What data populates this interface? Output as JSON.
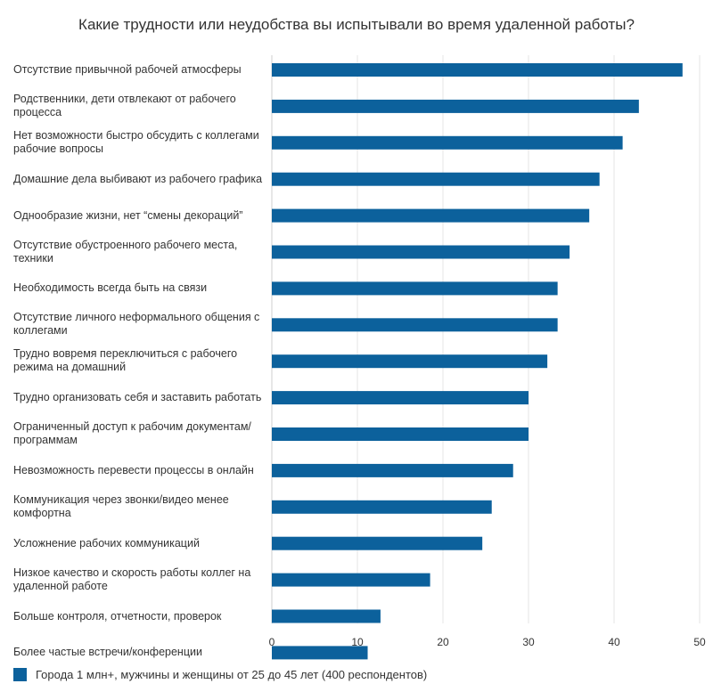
{
  "chart_data": {
    "type": "bar",
    "orientation": "horizontal",
    "title": "Какие трудности или неудобства вы испытывали во время удаленной работы?",
    "categories": [
      "Отсутствие привычной рабочей атмосферы",
      "Родственники, дети отвлекают от рабочего процесса",
      "Нет возможности быстро обсудить с коллегами рабочие вопросы",
      "Домашние дела выбивают из рабочего графика",
      "Однообразие жизни, нет “смены декораций”",
      "Отсутствие обустроенного рабочего места, техники",
      "Необходимость всегда быть на связи",
      "Отсутствие личного неформального общения с коллегами",
      "Трудно вовремя переключиться с рабочего режима на домашний",
      "Трудно организовать себя и заставить работать",
      "Ограниченный доступ к рабочим документам/программам",
      "Невозможность перевести процессы в онлайн",
      "Коммуникация через звонки/видео менее комфортна",
      "Усложнение рабочих коммуникаций",
      "Низкое качество и скорость работы коллег на удаленной работе",
      "Больше контроля, отчетности, проверок",
      "Более частые встречи/конференции"
    ],
    "series": [
      {
        "name": "Города 1 млн+, мужчины и женщины от 25 до 45 лет (400 респондентов)",
        "values": [
          48,
          42.9,
          41,
          38.3,
          37.1,
          34.8,
          33.4,
          33.4,
          32.2,
          30,
          30,
          28.2,
          25.7,
          24.6,
          18.5,
          12.7,
          11.2
        ]
      }
    ],
    "xlim": [
      0,
      50
    ],
    "xticks": [
      "0",
      "10",
      "20",
      "30",
      "40",
      "50"
    ],
    "grid": true,
    "legend_position": "bottom-left",
    "bar_color": "#0c619c"
  }
}
